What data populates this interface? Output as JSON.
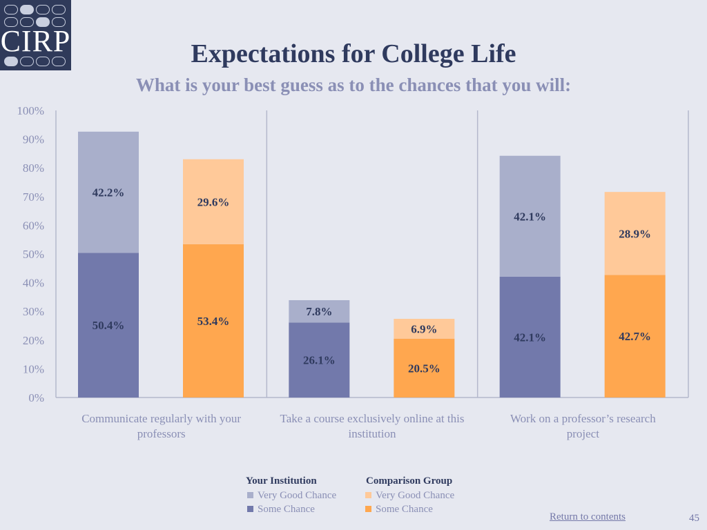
{
  "logo": {
    "text": "CIRP"
  },
  "header": {
    "title": "Expectations for College Life",
    "subtitle": "What is your best guess as to the chances that you will:"
  },
  "colors": {
    "inst_some": "#7279ab",
    "inst_very": "#a9afcb",
    "comp_some": "#ffa74f",
    "comp_very": "#ffc999",
    "axis": "#b4b8cc",
    "tick_text": "#8a8fb5",
    "value_text": "#2f3a5e"
  },
  "chart_data": {
    "type": "bar",
    "stacked": true,
    "categories": [
      "Communicate regularly with your professors",
      "Take a course exclusively online at this institution",
      "Work on a professor’s research project"
    ],
    "category_lines": [
      [
        "Communicate regularly with your",
        "professors"
      ],
      [
        "Take a course exclusively online at this",
        "institution"
      ],
      [
        "Work on a professor’s research",
        "project"
      ]
    ],
    "groups": [
      {
        "name": "Your Institution",
        "series": [
          {
            "name": "Some Chance",
            "values": [
              50.4,
              26.1,
              42.1
            ],
            "labels": [
              "50.4%",
              "26.1%",
              "42.1%"
            ]
          },
          {
            "name": "Very Good Chance",
            "values": [
              42.2,
              7.8,
              42.1
            ],
            "labels": [
              "42.2%",
              "7.8%",
              "42.1%"
            ]
          }
        ]
      },
      {
        "name": "Comparison Group",
        "series": [
          {
            "name": "Some Chance",
            "values": [
              53.4,
              20.5,
              42.7
            ],
            "labels": [
              "53.4%",
              "20.5%",
              "42.7%"
            ]
          },
          {
            "name": "Very Good Chance",
            "values": [
              29.6,
              6.9,
              28.9
            ],
            "labels": [
              "29.6%",
              "6.9%",
              "28.9%"
            ]
          }
        ]
      }
    ],
    "ylim": [
      0,
      100
    ],
    "yticks": [
      "0%",
      "10%",
      "20%",
      "30%",
      "40%",
      "50%",
      "60%",
      "70%",
      "80%",
      "90%",
      "100%"
    ],
    "grid": false,
    "legend_position": "bottom"
  },
  "legend": {
    "inst_title": "Your Institution",
    "comp_title": "Comparison Group",
    "very_good": "Very Good Chance",
    "some": "Some Chance"
  },
  "footer": {
    "return_link": "Return to contents",
    "page_number": "45"
  }
}
